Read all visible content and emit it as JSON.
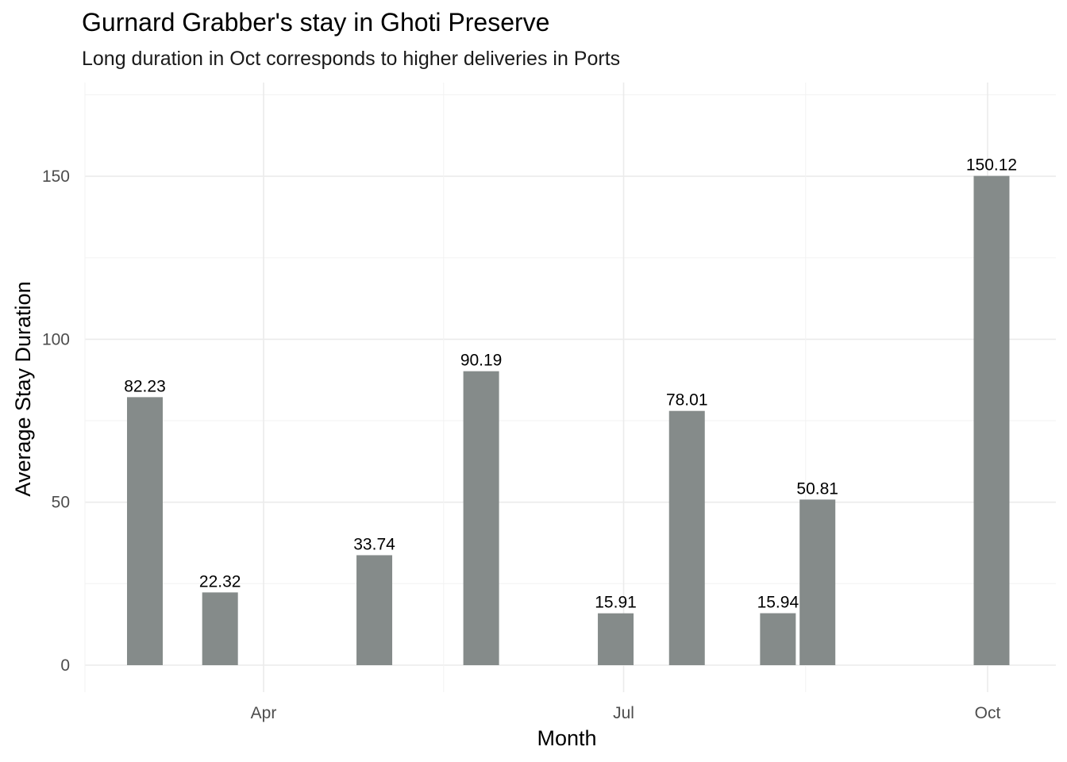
{
  "chart_data": {
    "type": "bar",
    "title": "Gurnard Grabber's stay in Ghoti Preserve",
    "subtitle": "Long duration in Oct corresponds to higher deliveries in Ports",
    "xlabel": "Month",
    "ylabel": "Average Stay Duration",
    "x_axis_type": "date",
    "x_ticks": [
      "Apr",
      "Jul",
      "Oct"
    ],
    "x_tick_dates": [
      "2023-04-01",
      "2023-07-01",
      "2023-10-01"
    ],
    "y_ticks": [
      0,
      50,
      100,
      150
    ],
    "ylim": [
      0,
      175
    ],
    "grid": true,
    "bar_color": "#858b8a",
    "points": [
      {
        "date": "2023-03-02",
        "value": 82.23,
        "label": "82.23"
      },
      {
        "date": "2023-03-21",
        "value": 22.32,
        "label": "22.32"
      },
      {
        "date": "2023-04-29",
        "value": 33.74,
        "label": "33.74"
      },
      {
        "date": "2023-05-26",
        "value": 90.19,
        "label": "90.19"
      },
      {
        "date": "2023-06-29",
        "value": 15.91,
        "label": "15.91"
      },
      {
        "date": "2023-07-17",
        "value": 78.01,
        "label": "78.01"
      },
      {
        "date": "2023-08-09",
        "value": 15.94,
        "label": "15.94"
      },
      {
        "date": "2023-08-19",
        "value": 50.81,
        "label": "50.81"
      },
      {
        "date": "2023-10-02",
        "value": 150.12,
        "label": "150.12"
      }
    ]
  }
}
